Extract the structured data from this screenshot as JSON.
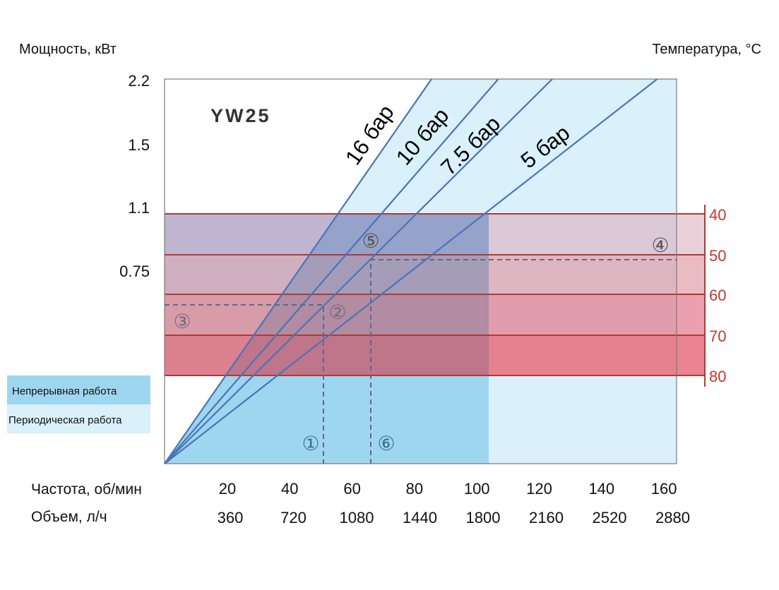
{
  "chart_data": {
    "type": "line",
    "title": "YW25",
    "ylabel": "Мощность, кВт",
    "y2label": "Температура, °C",
    "xlabel_rows": [
      "Частота, об/мин",
      "Объем, л/ч"
    ],
    "x_ticks_rpm": [
      20,
      40,
      60,
      80,
      100,
      120,
      140,
      160
    ],
    "x_ticks_volume": [
      360,
      720,
      1080,
      1440,
      1800,
      2160,
      2520,
      2880
    ],
    "xlim": [
      0,
      160
    ],
    "y_ticks": [
      "2.2",
      "1.5",
      "1.1",
      "0.75"
    ],
    "temperature_ticks": [
      "40",
      "50",
      "60",
      "70",
      "80"
    ],
    "series": [
      {
        "name": "16 бар",
        "x": [
          0,
          84
        ],
        "y": [
          0,
          2.2
        ]
      },
      {
        "name": "10 бар",
        "x": [
          0,
          105
        ],
        "y": [
          0,
          2.2
        ]
      },
      {
        "name": "7.5 бар",
        "x": [
          0,
          122
        ],
        "y": [
          0,
          2.2
        ]
      },
      {
        "name": "5 бар",
        "x": [
          0,
          155
        ],
        "y": [
          0,
          2.2
        ]
      }
    ],
    "legend": [
      {
        "label": "Непрерывная работа",
        "color": "#9fd6ef"
      },
      {
        "label": "Периодическая работа",
        "color": "#daf0fa"
      }
    ],
    "markers": [
      "①",
      "②",
      "③",
      "④",
      "⑤",
      "⑥"
    ],
    "continuous_operation_limit_rpm": 102,
    "colors": {
      "continuous": "#9fd6ef",
      "intermittent": "#daf0fa",
      "series_line": "#4a74b8",
      "temp_line": "#b03a36",
      "temp_text": "#c0392b",
      "dashed": "#5a6a8a"
    }
  }
}
